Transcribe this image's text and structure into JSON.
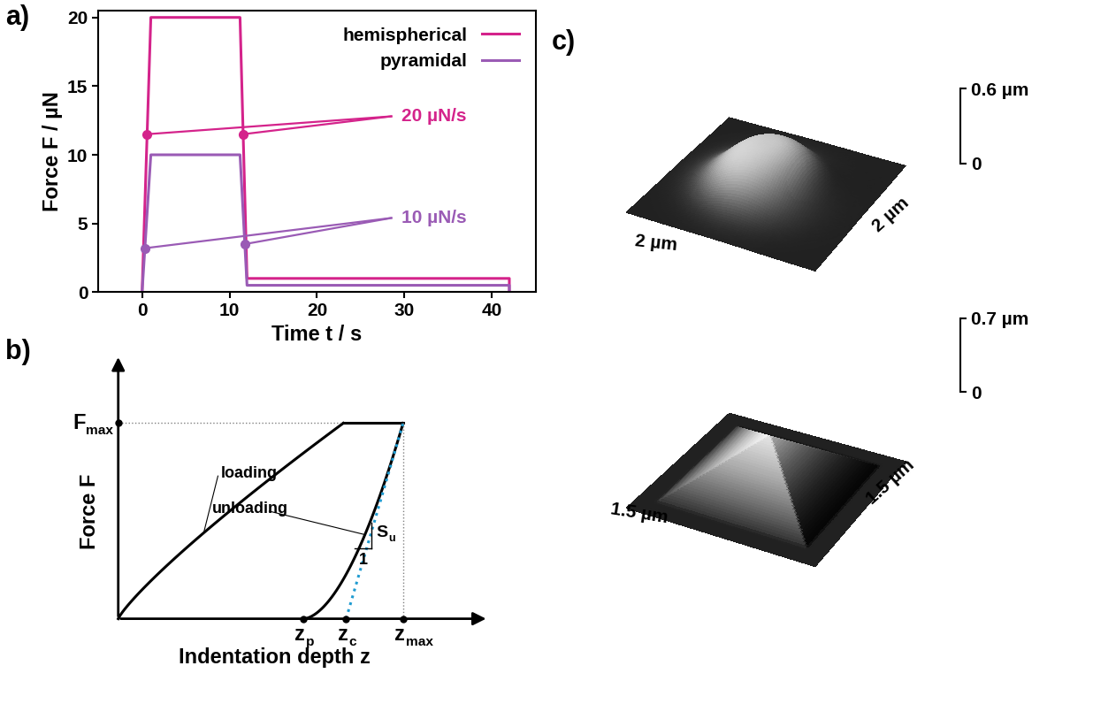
{
  "chart_data": [
    {
      "panel_label": "a)",
      "type": "line",
      "xlabel": "Time t / s",
      "ylabel": "Force F / µN",
      "xlim": [
        -5,
        45
      ],
      "ylim": [
        0,
        20.5
      ],
      "xticks": [
        0,
        10,
        20,
        30,
        40
      ],
      "yticks": [
        0,
        5,
        10,
        15,
        20
      ],
      "legend": "upper right",
      "series": [
        {
          "name": "hemispherical",
          "color": "#d4238b",
          "x": [
            0,
            1,
            11.2,
            12,
            42,
            42
          ],
          "values": [
            0,
            20,
            20,
            1,
            1,
            0
          ]
        },
        {
          "name": "pyramidal",
          "color": "#9a5bb5",
          "x": [
            0,
            1,
            11.2,
            12,
            42,
            42
          ],
          "values": [
            0,
            10,
            10,
            0.5,
            0.5,
            0
          ]
        }
      ],
      "annotations": [
        {
          "text": "20 µN/s",
          "color": "#d4238b",
          "x": [
            0.58,
            11.56
          ],
          "y": [
            11.5,
            11.5
          ]
        },
        {
          "text": "10 µN/s",
          "color": "#9a5bb5",
          "x": [
            0.32,
            11.75
          ],
          "y": [
            3.2,
            3.5
          ]
        }
      ]
    }
  ],
  "schematic": {
    "panel_label": "b)",
    "xlabel": "Indentation depth z",
    "ylabel": "Force F",
    "curve_labels": [
      "loading",
      "unloading"
    ],
    "y_marks": [
      {
        "main": "F",
        "sub": "max"
      }
    ],
    "x_marks": [
      {
        "main": "z",
        "sub": "p"
      },
      {
        "main": "z",
        "sub": "c"
      },
      {
        "main": "z",
        "sub": "max"
      }
    ],
    "slope": {
      "main": "S",
      "sub": "u"
    },
    "slope_run": 1
  },
  "topography_panel": {
    "panel_label": "c)",
    "surfaces": [
      {
        "indenter": "hemispherical",
        "x_extent": {
          "value": 2,
          "label": "2 µm"
        },
        "y_extent": {
          "value": 2,
          "label": "2 µm"
        },
        "z_scale": [
          {
            "value": 0,
            "label": "0"
          },
          {
            "value": 0.6,
            "label": "0.6 µm"
          }
        ],
        "peak_height": 0.45
      },
      {
        "indenter": "pyramidal",
        "x_extent": {
          "value": 1.5,
          "label": "1.5 µm"
        },
        "y_extent": {
          "value": 1.5,
          "label": "1.5 µm"
        },
        "z_scale": [
          {
            "value": 0,
            "label": "0"
          },
          {
            "value": 0.7,
            "label": "0.7 µm"
          }
        ],
        "peak_height": 0.55
      }
    ]
  }
}
